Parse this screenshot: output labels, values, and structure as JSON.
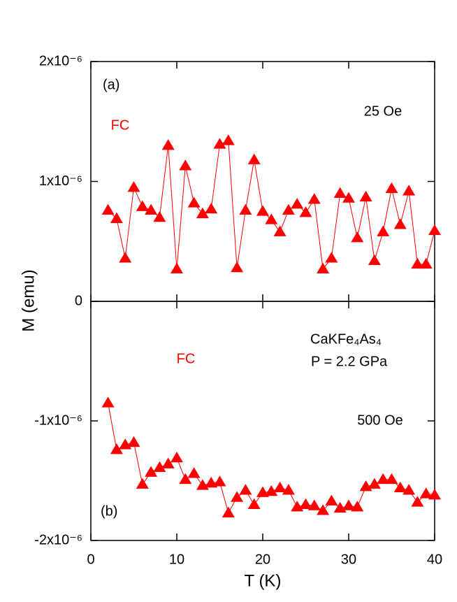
{
  "chart_data": [
    {
      "type": "line",
      "y_label": "M (emu)",
      "annotations": [
        "(a)",
        "25 Oe",
        "FC"
      ],
      "x": [
        2,
        3,
        4,
        5,
        6,
        7,
        8,
        9,
        10,
        11,
        12,
        13,
        14,
        15,
        16,
        17,
        18,
        19,
        20,
        21,
        22,
        23,
        24,
        25,
        26,
        27,
        28,
        29,
        30,
        31,
        32,
        33,
        34,
        35,
        36,
        37,
        38,
        39,
        40
      ],
      "values": [
        7.6e-07,
        6.9e-07,
        3.6e-07,
        9.5e-07,
        7.9e-07,
        7.6e-07,
        7e-07,
        1.3e-06,
        2.7e-07,
        1.13e-06,
        8.2e-07,
        7.3e-07,
        7.7e-07,
        1.31e-06,
        1.34e-06,
        2.8e-07,
        7.6e-07,
        1.18e-06,
        7.5e-07,
        6.8e-07,
        5.8e-07,
        7.6e-07,
        8.1e-07,
        7.4e-07,
        8.5e-07,
        2.7e-07,
        3.6e-07,
        9e-07,
        8.6e-07,
        5.3e-07,
        8.7e-07,
        3.4e-07,
        5.8e-07,
        9.4e-07,
        6.4e-07,
        9.2e-07,
        3.1e-07,
        3.1e-07,
        5.9e-07
      ],
      "color": "#ff0000",
      "xlim": [
        0,
        40
      ],
      "ylim": [
        0,
        2e-06
      ],
      "yticks": [
        0,
        {
          "value": 1e-06,
          "label": "1x10⁻⁶"
        },
        {
          "value": 2e-06,
          "label": "2x10⁻⁶"
        }
      ]
    },
    {
      "type": "line",
      "x_label": "T (K)",
      "annotations": [
        "CaKFe₄As₄",
        "P = 2.2 GPa",
        "500 Oe",
        "FC",
        "(b)"
      ],
      "x": [
        2,
        3,
        4,
        5,
        6,
        7,
        8,
        9,
        10,
        11,
        12,
        13,
        14,
        15,
        16,
        17,
        18,
        19,
        20,
        21,
        22,
        23,
        24,
        25,
        26,
        27,
        28,
        29,
        30,
        31,
        32,
        33,
        34,
        35,
        36,
        37,
        38,
        39,
        40
      ],
      "values": [
        -8.5e-07,
        -1.24e-06,
        -1.2e-06,
        -1.18e-06,
        -1.53e-06,
        -1.43e-06,
        -1.39e-06,
        -1.36e-06,
        -1.31e-06,
        -1.49e-06,
        -1.44e-06,
        -1.54e-06,
        -1.52e-06,
        -1.51e-06,
        -1.77e-06,
        -1.64e-06,
        -1.58e-06,
        -1.7e-06,
        -1.6e-06,
        -1.59e-06,
        -1.56e-06,
        -1.58e-06,
        -1.72e-06,
        -1.7e-06,
        -1.71e-06,
        -1.75e-06,
        -1.67e-06,
        -1.73e-06,
        -1.71e-06,
        -1.72e-06,
        -1.55e-06,
        -1.53e-06,
        -1.49e-06,
        -1.49e-06,
        -1.56e-06,
        -1.58e-06,
        -1.68e-06,
        -1.61e-06,
        -1.62e-06
      ],
      "color": "#ff0000",
      "xlim": [
        0,
        40
      ],
      "xticks": [
        0,
        10,
        20,
        30,
        40
      ],
      "ylim": [
        -2e-06,
        0
      ],
      "yticks": [
        {
          "value": -2e-06,
          "label": "-2x10⁻⁶"
        },
        {
          "value": -1e-06,
          "label": "-1x10⁻⁶"
        }
      ]
    }
  ]
}
